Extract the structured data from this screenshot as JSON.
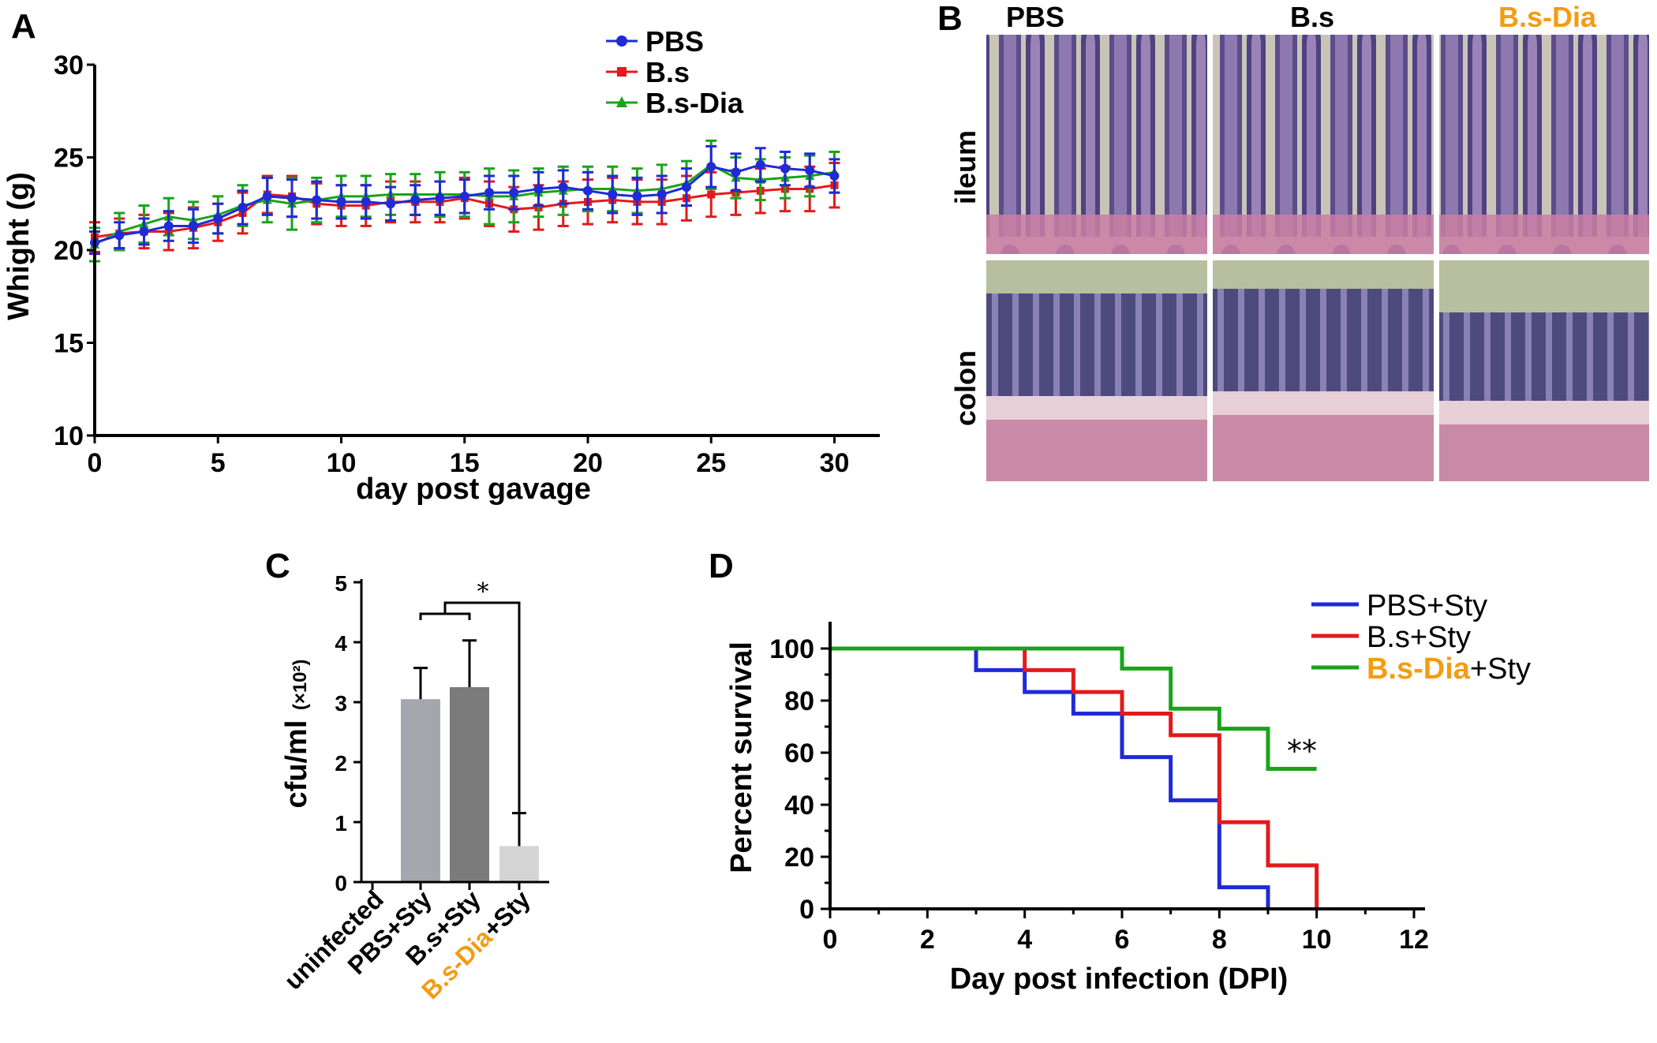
{
  "colors": {
    "pbs": "#1f2bd6",
    "bs": "#e31a1c",
    "bsdia": "#1aa31a",
    "orange": "#f39c12",
    "hist_bg": "#b7bfa0"
  },
  "panel_labels": {
    "a": "A",
    "b": "B",
    "c": "C",
    "d": "D"
  },
  "chart_data": [
    {
      "id": "A",
      "type": "line",
      "title": "",
      "xlabel": "day post gavage",
      "ylabel": "Whight (g)",
      "xlim": [
        0,
        32
      ],
      "ylim": [
        10,
        30
      ],
      "xticks": [
        "0",
        "5",
        "10",
        "15",
        "20",
        "25",
        "30"
      ],
      "yticks": [
        "10",
        "15",
        "20",
        "25",
        "30"
      ],
      "legend_position": "top-right",
      "x": [
        0,
        1,
        2,
        3,
        4,
        5,
        6,
        7,
        8,
        9,
        10,
        11,
        12,
        13,
        14,
        15,
        16,
        17,
        18,
        19,
        20,
        21,
        22,
        23,
        24,
        25,
        26,
        27,
        28,
        29,
        30
      ],
      "series": [
        {
          "name": "PBS",
          "marker": "circle",
          "values": [
            20.4,
            20.8,
            21.0,
            21.3,
            21.3,
            21.7,
            22.3,
            22.9,
            22.8,
            22.7,
            22.6,
            22.6,
            22.5,
            22.7,
            22.8,
            22.9,
            23.1,
            23.1,
            23.3,
            23.4,
            23.2,
            23.0,
            22.9,
            23.0,
            23.4,
            24.5,
            24.2,
            24.6,
            24.4,
            24.3,
            24.0
          ],
          "errors": [
            0.6,
            0.7,
            0.7,
            0.8,
            0.9,
            0.8,
            0.9,
            1.0,
            1.0,
            1.0,
            0.9,
            0.9,
            0.9,
            0.8,
            0.9,
            0.9,
            0.9,
            0.9,
            0.9,
            0.9,
            1.0,
            1.0,
            1.0,
            1.0,
            1.0,
            1.1,
            1.0,
            0.9,
            0.9,
            0.9,
            0.9
          ]
        },
        {
          "name": "B.s",
          "marker": "square",
          "values": [
            20.7,
            20.9,
            21.0,
            21.0,
            21.2,
            21.5,
            22.0,
            23.0,
            22.9,
            22.5,
            22.4,
            22.4,
            22.6,
            22.6,
            22.6,
            22.8,
            22.5,
            22.2,
            22.3,
            22.5,
            22.6,
            22.7,
            22.6,
            22.6,
            22.8,
            23.0,
            23.1,
            23.2,
            23.3,
            23.3,
            23.5
          ],
          "errors": [
            0.8,
            0.8,
            0.9,
            1.0,
            1.1,
            1.0,
            1.1,
            1.0,
            1.1,
            1.1,
            1.1,
            1.1,
            1.1,
            1.1,
            1.1,
            1.1,
            1.2,
            1.2,
            1.2,
            1.2,
            1.2,
            1.2,
            1.2,
            1.2,
            1.2,
            1.2,
            1.2,
            1.2,
            1.2,
            1.2,
            1.2
          ]
        },
        {
          "name": "B.s-Dia",
          "marker": "triangle",
          "values": [
            20.3,
            21.0,
            21.4,
            21.8,
            21.6,
            21.9,
            22.4,
            22.7,
            22.5,
            22.7,
            22.9,
            22.9,
            23.0,
            23.0,
            23.0,
            23.0,
            22.9,
            22.9,
            23.1,
            23.2,
            23.3,
            23.3,
            23.2,
            23.3,
            23.6,
            24.6,
            23.9,
            23.8,
            23.9,
            24.0,
            24.2
          ],
          "errors": [
            0.9,
            1.0,
            1.0,
            1.0,
            1.0,
            1.0,
            1.1,
            1.2,
            1.4,
            1.2,
            1.1,
            1.1,
            1.1,
            1.1,
            1.2,
            1.2,
            1.5,
            1.4,
            1.3,
            1.3,
            1.2,
            1.2,
            1.2,
            1.3,
            1.2,
            1.3,
            1.1,
            1.1,
            1.1,
            1.1,
            1.1
          ]
        }
      ]
    },
    {
      "id": "C",
      "type": "bar",
      "title": "",
      "ylabel": "cfu/ml",
      "ylabel_unit": "(×10²)",
      "ylim": [
        0,
        5
      ],
      "yticks": [
        "0",
        "1",
        "2",
        "3",
        "4",
        "5"
      ],
      "categories": [
        {
          "parts": [
            {
              "text": "uninfected",
              "color": ""
            }
          ]
        },
        {
          "parts": [
            {
              "text": "PBS+Sty",
              "color": ""
            }
          ]
        },
        {
          "parts": [
            {
              "text": "B.s+Sty",
              "color": ""
            }
          ]
        },
        {
          "parts": [
            {
              "text": "B.s-Dia",
              "color": "orange"
            },
            {
              "text": "+Sty",
              "color": ""
            }
          ]
        }
      ],
      "values": [
        0,
        3.05,
        3.25,
        0.6
      ],
      "errors": [
        0,
        0.52,
        0.78,
        0.55
      ],
      "bar_colors": [
        "#a6a6ae",
        "#a6a6ae",
        "#7b7b7b",
        "#d4d4d4"
      ],
      "annotation": "*"
    },
    {
      "id": "D",
      "type": "line",
      "subtype": "step",
      "title": "",
      "xlabel": "Day post infection (DPI)",
      "ylabel": "Percent survival",
      "xlim": [
        0,
        12
      ],
      "ylim": [
        0,
        100
      ],
      "xticks": [
        "0",
        "2",
        "4",
        "6",
        "8",
        "10",
        "12"
      ],
      "yticks": [
        "0",
        "20",
        "40",
        "60",
        "80",
        "100"
      ],
      "legend_position": "top-right",
      "series": [
        {
          "name": "PBS+Sty",
          "x": [
            0,
            3,
            4,
            5,
            6,
            7,
            8,
            9
          ],
          "y": [
            100,
            91.7,
            83.3,
            75,
            58.3,
            41.7,
            8.3,
            0
          ]
        },
        {
          "name": "B.s+Sty",
          "x": [
            0,
            4,
            5,
            6,
            7,
            8,
            9,
            10
          ],
          "y": [
            100,
            91.7,
            83.3,
            75,
            66.7,
            33.3,
            16.7,
            0
          ]
        },
        {
          "name": "B.s-Dia+Sty",
          "x": [
            0,
            6,
            7,
            8,
            9,
            10
          ],
          "y": [
            100,
            92.3,
            76.9,
            69.2,
            53.8,
            53.8
          ]
        }
      ],
      "legend": [
        {
          "parts": [
            {
              "text": "PBS+Sty",
              "color": ""
            }
          ]
        },
        {
          "parts": [
            {
              "text": "B.s+Sty",
              "color": ""
            }
          ]
        },
        {
          "parts": [
            {
              "text": "B.s-Dia",
              "color": "orange"
            },
            {
              "text": "+Sty",
              "color": ""
            }
          ]
        }
      ],
      "annotation": "**"
    }
  ],
  "panel_b": {
    "columns": [
      "PBS",
      "B.s",
      "B.s-Dia"
    ],
    "rows": [
      "ileum",
      "colon"
    ]
  }
}
